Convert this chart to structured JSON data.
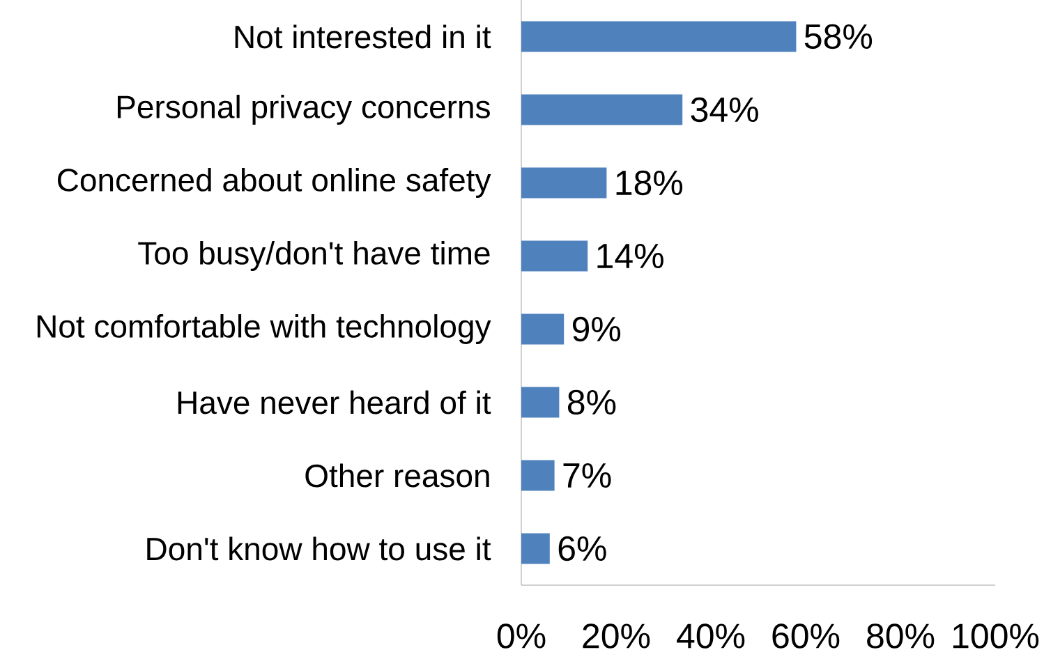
{
  "chart_data": {
    "type": "bar",
    "orientation": "horizontal",
    "categories": [
      "Not interested in it",
      "Personal privacy concerns",
      "Concerned about online safety",
      "Too busy/don't have time",
      "Not comfortable with technology",
      "Have never heard of it",
      "Other reason",
      "Don't know how to use it"
    ],
    "values": [
      58,
      34,
      18,
      14,
      9,
      8,
      7,
      6
    ],
    "value_labels": [
      "58%",
      "34%",
      "18%",
      "14%",
      "9%",
      "8%",
      "7%",
      "6%"
    ],
    "color": "#4f81bd",
    "xlim": [
      0,
      100
    ],
    "xticks": [
      {
        "value": 0,
        "label": "0%"
      },
      {
        "value": 20,
        "label": "20%"
      },
      {
        "value": 40,
        "label": "40%"
      },
      {
        "value": 60,
        "label": "60%"
      },
      {
        "value": 80,
        "label": "80%"
      },
      {
        "value": 100,
        "label": "100%"
      }
    ],
    "grid": false
  }
}
